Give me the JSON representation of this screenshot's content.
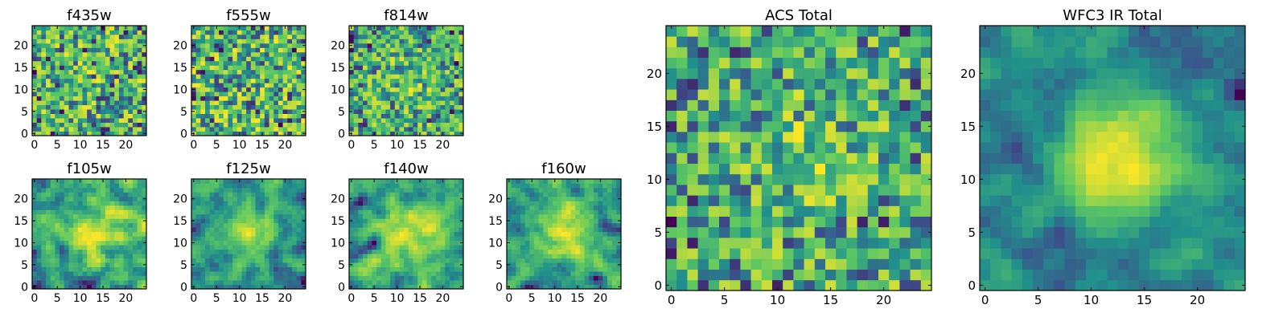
{
  "chart_data": [
    {
      "type": "heatmap",
      "title": "f435w",
      "grid_size": 25,
      "xticks": [
        0,
        5,
        10,
        15,
        20
      ],
      "yticks": [
        0,
        5,
        10,
        15,
        20
      ],
      "pattern": "noise"
    },
    {
      "type": "heatmap",
      "title": "f555w",
      "grid_size": 25,
      "xticks": [
        0,
        5,
        10,
        15,
        20
      ],
      "yticks": [
        0,
        5,
        10,
        15,
        20
      ],
      "pattern": "noise"
    },
    {
      "type": "heatmap",
      "title": "f814w",
      "grid_size": 25,
      "xticks": [
        0,
        5,
        10,
        15,
        20
      ],
      "yticks": [
        0,
        5,
        10,
        15,
        20
      ],
      "pattern": "noise-weak-center"
    },
    {
      "type": "heatmap",
      "title": "f105w",
      "grid_size": 25,
      "xticks": [
        0,
        5,
        10,
        15,
        20
      ],
      "yticks": [
        0,
        5,
        10,
        15,
        20
      ],
      "pattern": "smooth-center"
    },
    {
      "type": "heatmap",
      "title": "f125w",
      "grid_size": 25,
      "xticks": [
        0,
        5,
        10,
        15,
        20
      ],
      "yticks": [
        0,
        5,
        10,
        15,
        20
      ],
      "pattern": "smooth-center"
    },
    {
      "type": "heatmap",
      "title": "f140w",
      "grid_size": 25,
      "xticks": [
        0,
        5,
        10,
        15,
        20
      ],
      "yticks": [
        0,
        5,
        10,
        15,
        20
      ],
      "pattern": "smooth-center"
    },
    {
      "type": "heatmap",
      "title": "f160w",
      "grid_size": 25,
      "xticks": [
        0,
        5,
        10,
        15,
        20
      ],
      "yticks": [
        0,
        5,
        10,
        15,
        20
      ],
      "pattern": "smooth-center"
    },
    {
      "type": "heatmap",
      "title": "ACS Total",
      "grid_size": 25,
      "xticks": [
        0,
        5,
        10,
        15,
        20
      ],
      "yticks": [
        0,
        5,
        10,
        15,
        20
      ],
      "pattern": "noise-weak-center"
    },
    {
      "type": "heatmap",
      "title": "WFC3 IR Total",
      "grid_size": 25,
      "xticks": [
        0,
        5,
        10,
        15,
        20
      ],
      "yticks": [
        0,
        5,
        10,
        15,
        20
      ],
      "pattern": "strong-center"
    }
  ],
  "colormap": {
    "name": "viridis",
    "colors": [
      "#440154",
      "#3b528b",
      "#21918c",
      "#5ec962",
      "#fde725"
    ]
  }
}
